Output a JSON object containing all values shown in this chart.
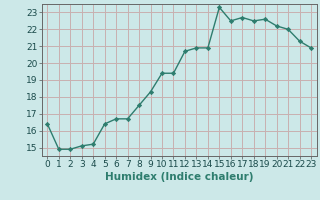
{
  "xlabel": "Humidex (Indice chaleur)",
  "x": [
    0,
    1,
    2,
    3,
    4,
    5,
    6,
    7,
    8,
    9,
    10,
    11,
    12,
    13,
    14,
    15,
    16,
    17,
    18,
    19,
    20,
    21,
    22,
    23
  ],
  "y": [
    16.4,
    14.9,
    14.9,
    15.1,
    15.2,
    16.4,
    16.7,
    16.7,
    17.5,
    18.3,
    19.4,
    19.4,
    20.7,
    20.9,
    20.9,
    23.3,
    22.5,
    22.7,
    22.5,
    22.6,
    22.2,
    22.0,
    21.3,
    20.9
  ],
  "line_color": "#2e7d6e",
  "marker": "D",
  "marker_size": 2.2,
  "line_width": 1.0,
  "bg_color": "#cce8e8",
  "grid_color": "#c8b0b0",
  "ylim": [
    14.5,
    23.5
  ],
  "yticks": [
    15,
    16,
    17,
    18,
    19,
    20,
    21,
    22,
    23
  ],
  "xticks": [
    0,
    1,
    2,
    3,
    4,
    5,
    6,
    7,
    8,
    9,
    10,
    11,
    12,
    13,
    14,
    15,
    16,
    17,
    18,
    19,
    20,
    21,
    22,
    23
  ],
  "tick_label_size": 6.5,
  "xlabel_size": 7.5
}
